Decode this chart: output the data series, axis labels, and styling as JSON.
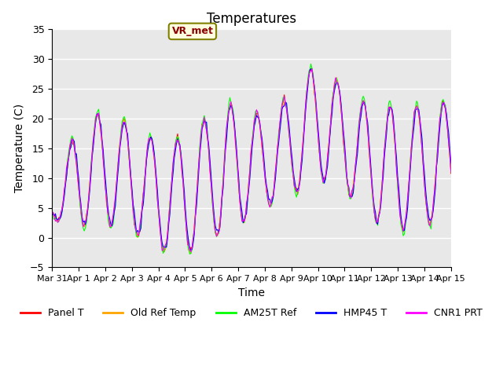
{
  "title": "Temperatures",
  "xlabel": "Time",
  "ylabel": "Temperature (C)",
  "ylim": [
    -5,
    35
  ],
  "yticks": [
    -5,
    0,
    5,
    10,
    15,
    20,
    25,
    30,
    35
  ],
  "xtick_labels": [
    "Mar 31",
    "Apr 1",
    "Apr 2",
    "Apr 3",
    "Apr 4",
    "Apr 5",
    "Apr 6",
    "Apr 7",
    "Apr 8",
    "Apr 9",
    "Apr 10",
    "Apr 11",
    "Apr 12",
    "Apr 13",
    "Apr 14",
    "Apr 15"
  ],
  "annotation_text": "VR_met",
  "series_colors": [
    "red",
    "orange",
    "lime",
    "blue",
    "magenta"
  ],
  "series_labels": [
    "Panel T",
    "Old Ref Temp",
    "AM25T Ref",
    "HMP45 T",
    "CNR1 PRT"
  ],
  "bg_color": "#e8e8e8",
  "grid_color": "white",
  "title_fontsize": 12,
  "label_fontsize": 10,
  "tick_fontsize": 9
}
